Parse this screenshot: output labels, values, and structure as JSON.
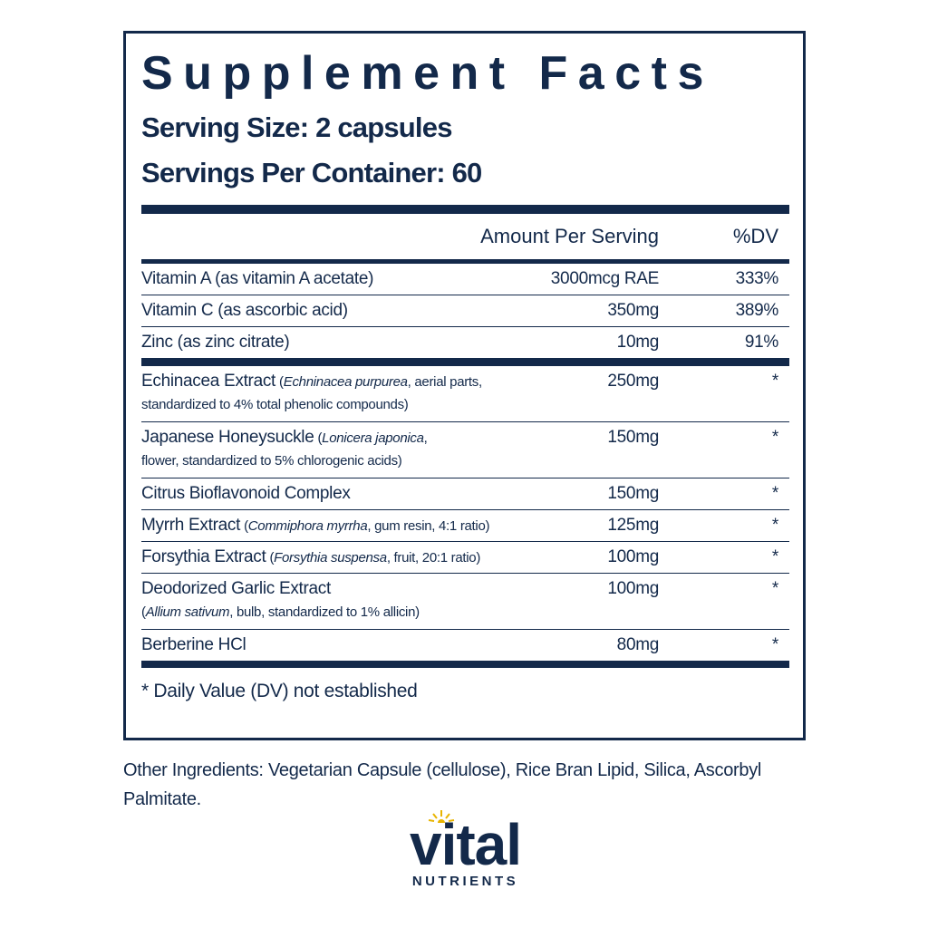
{
  "panel": {
    "title": "Supplement Facts",
    "serving_size": "Serving Size: 2 capsules",
    "servings_per_container": "Servings Per Container: 60"
  },
  "table": {
    "header": {
      "amount": "Amount Per Serving",
      "dv": "%DV"
    },
    "groups": [
      {
        "rows": [
          {
            "line1": [
              {
                "text": "Vitamin A (as vitamin A acetate)",
                "italic": false
              }
            ],
            "amount": "3000mcg RAE",
            "dv": "333%"
          },
          {
            "line1": [
              {
                "text": "Vitamin C (as ascorbic acid)",
                "italic": false
              }
            ],
            "amount": "350mg",
            "dv": "389%"
          },
          {
            "line1": [
              {
                "text": "Zinc (as zinc citrate)",
                "italic": false
              }
            ],
            "amount": "10mg",
            "dv": "91%"
          }
        ]
      },
      {
        "rows": [
          {
            "line1": [
              {
                "text": "Echinacea Extract",
                "italic": false
              },
              {
                "text": "(",
                "italic": false
              },
              {
                "text": "Echninacea purpurea",
                "italic": true
              },
              {
                "text": ", aerial parts,",
                "italic": false
              }
            ],
            "line2": [
              {
                "text": "standardized to 4% total phenolic compounds)",
                "italic": false
              }
            ],
            "amount": "250mg",
            "dv": "*"
          },
          {
            "line1": [
              {
                "text": "Japanese Honeysuckle",
                "italic": false
              },
              {
                "text": "(",
                "italic": false
              },
              {
                "text": "Lonicera japonica",
                "italic": true
              },
              {
                "text": ",",
                "italic": false
              }
            ],
            "line2": [
              {
                "text": "flower, standardized to 5% chlorogenic acids)",
                "italic": false
              }
            ],
            "amount": "150mg",
            "dv": "*"
          },
          {
            "line1": [
              {
                "text": "Citrus Bioflavonoid Complex",
                "italic": false
              }
            ],
            "amount": "150mg",
            "dv": "*"
          },
          {
            "line1": [
              {
                "text": "Myrrh Extract",
                "italic": false
              },
              {
                "text": "(",
                "italic": false
              },
              {
                "text": "Commiphora myrrha",
                "italic": true
              },
              {
                "text": ", gum resin, 4:1 ratio)",
                "italic": false
              }
            ],
            "amount": "125mg",
            "dv": "*"
          },
          {
            "line1": [
              {
                "text": "Forsythia Extract",
                "italic": false
              },
              {
                "text": "(",
                "italic": false
              },
              {
                "text": "Forsythia suspensa",
                "italic": true
              },
              {
                "text": ", fruit, 20:1 ratio)",
                "italic": false
              }
            ],
            "amount": "100mg",
            "dv": "*"
          },
          {
            "line1": [
              {
                "text": "Deodorized Garlic Extract",
                "italic": false
              }
            ],
            "line2": [
              {
                "text": "(",
                "italic": false
              },
              {
                "text": "Allium sativum",
                "italic": true
              },
              {
                "text": ", bulb, standardized to 1% allicin)",
                "italic": false
              }
            ],
            "amount": "100mg",
            "dv": "*"
          },
          {
            "line1": [
              {
                "text": "Berberine HCl",
                "italic": false
              }
            ],
            "amount": "80mg",
            "dv": "*"
          }
        ]
      }
    ],
    "footnote": "* Daily Value (DV) not established"
  },
  "other_ingredients": "Other Ingredients: Vegetarian Capsule (cellulose), Rice Bran Lipid, Silica, Ascorbyl Palmitate.",
  "logo": {
    "word": "vital",
    "sub": "NUTRIENTS"
  }
}
